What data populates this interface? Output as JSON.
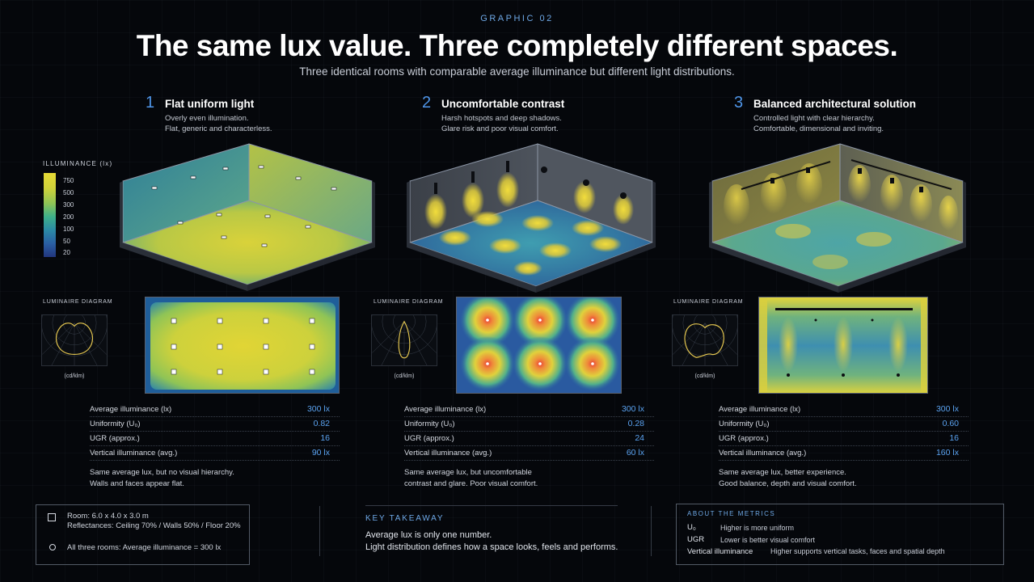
{
  "header": {
    "eyebrow": "GRAPHIC 02",
    "title": "The same lux value. Three completely different spaces.",
    "subtitle": "Three identical rooms with comparable average illuminance but different light distributions."
  },
  "legend": {
    "title": "ILLUMINANCE (lx)",
    "ticks": [
      "750",
      "500",
      "300",
      "200",
      "100",
      "50",
      "20"
    ]
  },
  "sections": [
    {
      "number": "1",
      "title": "Flat uniform light",
      "desc_line1": "Overly even illumination.",
      "desc_line2": "Flat, generic and characterless.",
      "luminaire_label": "LUMINAIRE DIAGRAM",
      "luminaire_unit": "(cd/klm)",
      "metrics": [
        {
          "label": "Average illuminance (lx)",
          "value": "300 lx"
        },
        {
          "label": "Uniformity (U₀)",
          "value": "0.82"
        },
        {
          "label": "UGR (approx.)",
          "value": "16"
        },
        {
          "label": "Vertical illuminance (avg.)",
          "value": "90 lx"
        }
      ],
      "note_line1": "Same average lux, but no visual hierarchy.",
      "note_line2": "Walls and faces appear flat."
    },
    {
      "number": "2",
      "title": "Uncomfortable contrast",
      "desc_line1": "Harsh hotspots and deep shadows.",
      "desc_line2": "Glare risk and poor visual comfort.",
      "luminaire_label": "LUMINAIRE DIAGRAM",
      "luminaire_unit": "(cd/klm)",
      "metrics": [
        {
          "label": "Average illuminance (lx)",
          "value": "300 lx"
        },
        {
          "label": "Uniformity (U₀)",
          "value": "0.28"
        },
        {
          "label": "UGR (approx.)",
          "value": "24"
        },
        {
          "label": "Vertical illuminance (avg.)",
          "value": "60 lx"
        }
      ],
      "note_line1": "Same average lux, but uncomfortable",
      "note_line2": "contrast and glare. Poor visual comfort."
    },
    {
      "number": "3",
      "title": "Balanced architectural solution",
      "desc_line1": "Controlled light with clear hierarchy.",
      "desc_line2": "Comfortable, dimensional and inviting.",
      "luminaire_label": "LUMINAIRE DIAGRAM",
      "luminaire_unit": "(cd/klm)",
      "metrics": [
        {
          "label": "Average illuminance (lx)",
          "value": "300 lx"
        },
        {
          "label": "Uniformity (U₀)",
          "value": "0.60"
        },
        {
          "label": "UGR (approx.)",
          "value": "16"
        },
        {
          "label": "Vertical illuminance (avg.)",
          "value": "160 lx"
        }
      ],
      "note_line1": "Same average lux, better experience.",
      "note_line2": "Good balance, depth and visual comfort."
    }
  ],
  "room_info": {
    "line1": "Room: 6.0 x 4.0 x 3.0 m",
    "line2": "Reflectances: Ceiling 70% / Walls 50% / Floor 20%",
    "line3": "All three rooms: Average illuminance = 300 lx"
  },
  "takeaway": {
    "title": "KEY TAKEAWAY",
    "line1": "Average lux is only one number.",
    "line2": "Light distribution defines how a space looks, feels and performs."
  },
  "about": {
    "title": "ABOUT THE METRICS",
    "items": [
      {
        "term": "U₀",
        "definition": "Higher is more uniform"
      },
      {
        "term": "UGR",
        "definition": "Lower is better visual comfort"
      },
      {
        "term": "Vertical illuminance",
        "definition": "Higher supports vertical tasks, faces and spatial depth"
      }
    ]
  }
}
